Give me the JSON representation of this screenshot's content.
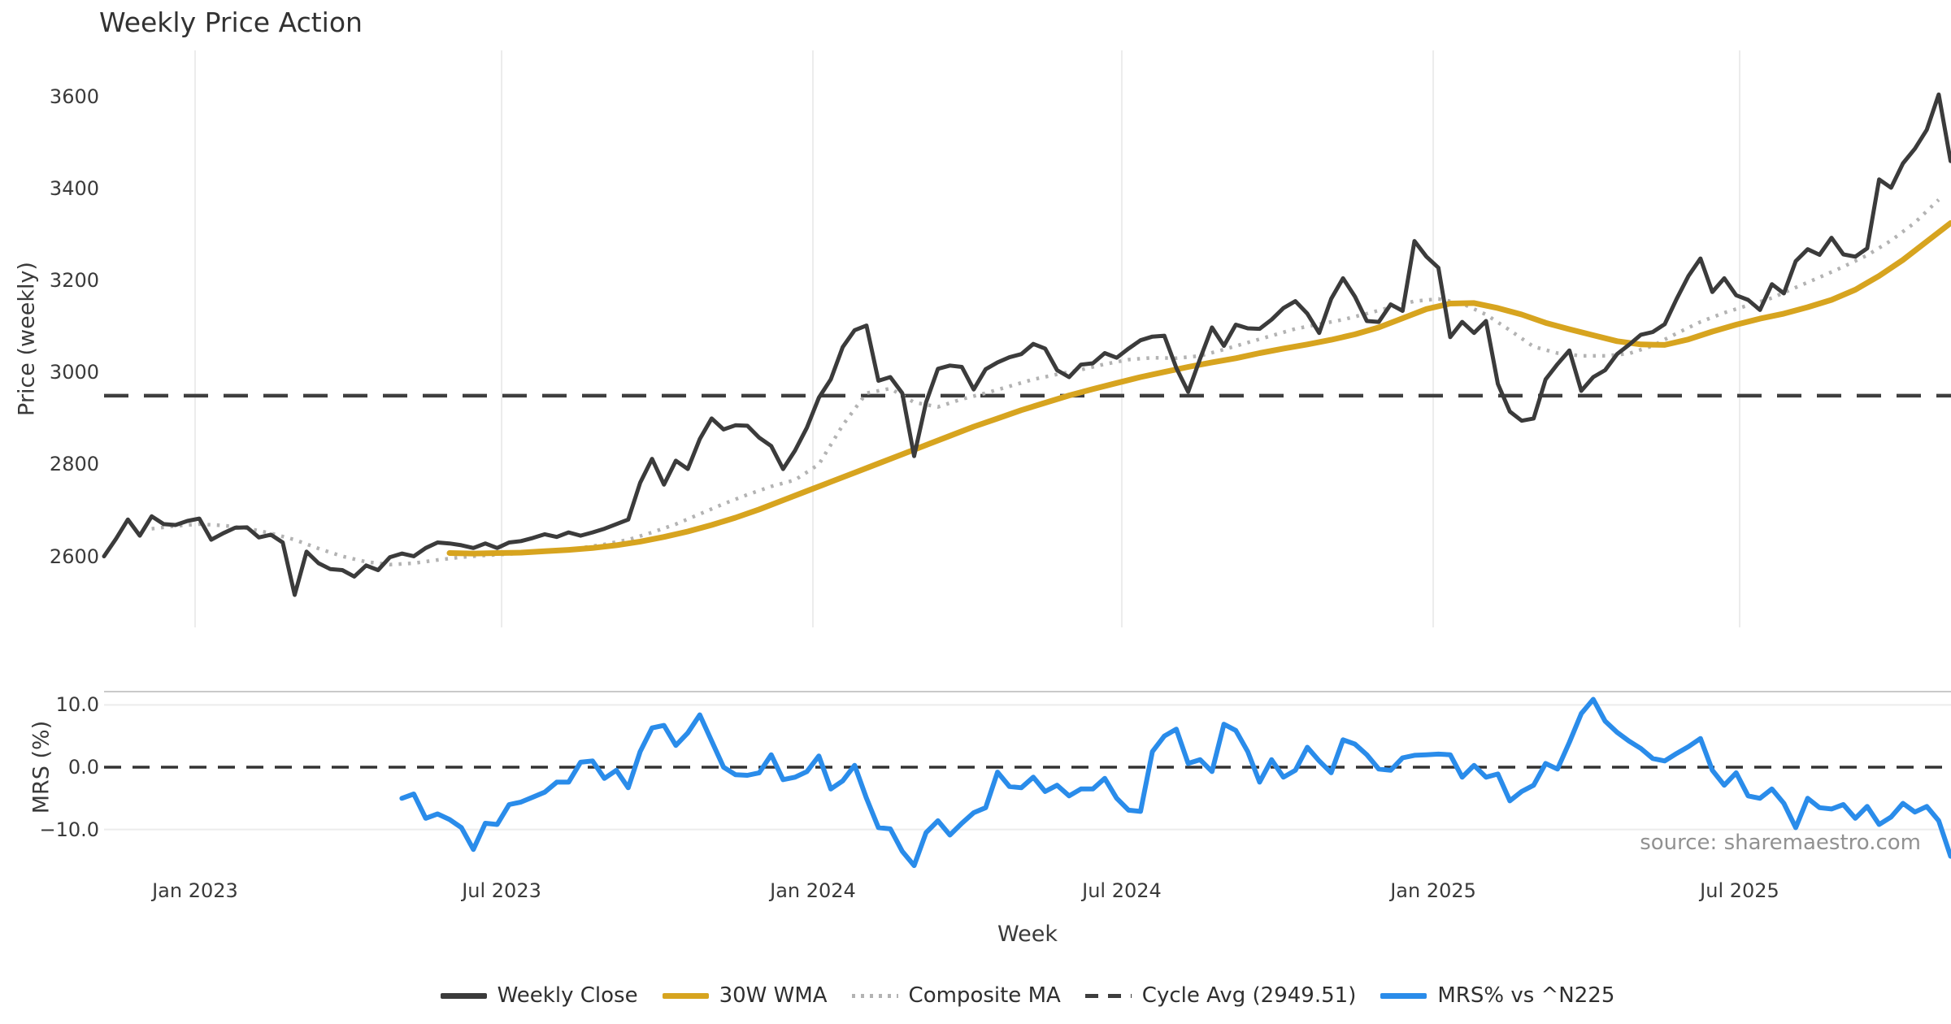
{
  "title": "Weekly Price Action",
  "x_label": "Week",
  "source": "source: sharemaestro.com",
  "colors": {
    "close": "#3b3b3b",
    "wma": "#d7a41f",
    "composite": "#b3b3b3",
    "cycle_avg": "#3e3e3e",
    "mrs": "#2a8cea",
    "grid": "#ececec",
    "spine": "#c9c9c9",
    "zero_line": "#333333",
    "text": "#3a3a3a",
    "muted": "#919191"
  },
  "price_panel": {
    "y_label": "Price (weekly)",
    "y_ticks": [
      3600,
      3400,
      3200,
      3000,
      2800,
      2600
    ]
  },
  "mrs_panel": {
    "y_label": "MRS (%)",
    "y_ticks": [
      {
        "label": "10.0",
        "value": 10
      },
      {
        "label": "0.0",
        "value": 0
      },
      {
        "label": "−10.0",
        "value": -10
      }
    ]
  },
  "x_ticks": [
    {
      "label": "Jan 2023",
      "week": 7.64
    },
    {
      "label": "Jul 2023",
      "week": 33.37
    },
    {
      "label": "Jan 2024",
      "week": 59.5
    },
    {
      "label": "Jul 2024",
      "week": 85.43
    },
    {
      "label": "Jan 2025",
      "week": 111.57
    },
    {
      "label": "Jul 2025",
      "week": 137.29
    }
  ],
  "legend": [
    {
      "label": "Weekly Close",
      "style": "solid",
      "color": "#3b3b3b"
    },
    {
      "label": "30W WMA",
      "style": "solid",
      "color": "#d7a41f"
    },
    {
      "label": "Composite MA",
      "style": "dotted",
      "color": "#b3b3b3"
    },
    {
      "label": "Cycle Avg (2949.51)",
      "style": "dashed",
      "color": "#3e3e3e"
    },
    {
      "label": "MRS% vs ^N225",
      "style": "solid",
      "color": "#2a8cea"
    }
  ],
  "chart_data": {
    "type": "line",
    "x_unit": "weeks (weekly samples, ~Nov 2022 to Nov 2025)",
    "panels": [
      {
        "name": "price",
        "ylabel": "Price (weekly)",
        "ylim": [
          2480,
          3660
        ],
        "grid": "vertical-only",
        "cycle_avg_value": 2949.51,
        "series": [
          {
            "name": "Weekly Close",
            "start_week": 0,
            "step": 1,
            "values": [
              2600,
              2638,
              2680,
              2645,
              2687,
              2670,
              2668,
              2677,
              2682,
              2636,
              2650,
              2662,
              2663,
              2641,
              2647,
              2630,
              2516,
              2610,
              2585,
              2572,
              2570,
              2556,
              2580,
              2570,
              2598,
              2606,
              2600,
              2618,
              2630,
              2628,
              2624,
              2618,
              2628,
              2618,
              2630,
              2633,
              2640,
              2648,
              2642,
              2652,
              2645,
              2652,
              2660,
              2670,
              2680,
              2760,
              2812,
              2756,
              2808,
              2790,
              2855,
              2900,
              2876,
              2885,
              2884,
              2858,
              2840,
              2790,
              2830,
              2880,
              2945,
              2985,
              3055,
              3092,
              3102,
              2982,
              2990,
              2955,
              2818,
              2935,
              3008,
              3015,
              3012,
              2963,
              3007,
              3022,
              3033,
              3040,
              3062,
              3052,
              3005,
              2990,
              3017,
              3020,
              3042,
              3032,
              3052,
              3070,
              3078,
              3080,
              3010,
              2958,
              3030,
              3098,
              3058,
              3104,
              3096,
              3095,
              3115,
              3140,
              3155,
              3128,
              3086,
              3160,
              3205,
              3165,
              3112,
              3110,
              3148,
              3134,
              3286,
              3252,
              3228,
              3077,
              3110,
              3086,
              3112,
              2975,
              2915,
              2895,
              2900,
              2985,
              3018,
              3048,
              2960,
              2990,
              3005,
              3040,
              3060,
              3082,
              3088,
              3105,
              3160,
              3210,
              3248,
              3175,
              3205,
              3168,
              3158,
              3136,
              3192,
              3172,
              3242,
              3268,
              3256,
              3293,
              3257,
              3252,
              3270,
              3420,
              3402,
              3455,
              3487,
              3528,
              3605,
              3460
            ]
          },
          {
            "name": "30W WMA",
            "start_week": 29,
            "step": 2,
            "values": [
              2607,
              2606,
              2607,
              2608,
              2611,
              2614,
              2618,
              2624,
              2632,
              2642,
              2654,
              2668,
              2684,
              2702,
              2722,
              2742,
              2762,
              2782,
              2802,
              2822,
              2842,
              2862,
              2882,
              2900,
              2918,
              2934,
              2950,
              2964,
              2977,
              2990,
              3001,
              3012,
              3022,
              3031,
              3042,
              3052,
              3061,
              3071,
              3083,
              3098,
              3118,
              3138,
              3150,
              3151,
              3140,
              3126,
              3108,
              3094,
              3081,
              3068,
              3061,
              3060,
              3072,
              3089,
              3104,
              3117,
              3128,
              3142,
              3158,
              3180,
              3210,
              3245,
              3285,
              3325
            ]
          },
          {
            "name": "Composite MA",
            "start_week": 4,
            "step": 2,
            "values": [
              2660,
              2666,
              2670,
              2667,
              2661,
              2650,
              2636,
              2617,
              2600,
              2588,
              2582,
              2585,
              2592,
              2598,
              2602,
              2605,
              2608,
              2612,
              2618,
              2626,
              2636,
              2652,
              2670,
              2692,
              2714,
              2734,
              2752,
              2766,
              2800,
              2885,
              2955,
              2965,
              2935,
              2925,
              2942,
              2955,
              2970,
              2985,
              2996,
              3006,
              3018,
              3028,
              3032,
              3031,
              3036,
              3050,
              3065,
              3080,
              3095,
              3105,
              3115,
              3128,
              3142,
              3155,
              3160,
              3150,
              3126,
              3092,
              3056,
              3042,
              3036,
              3036,
              3041,
              3058,
              3085,
              3110,
              3130,
              3146,
              3162,
              3185,
              3207,
              3230,
              3255,
              3287,
              3326,
              3376
            ]
          }
        ]
      },
      {
        "name": "mrs",
        "ylabel": "MRS (%)",
        "ylim": [
          -17.5,
          12.5
        ],
        "grid": "horizontal-at-ticks",
        "zero_line": 0,
        "series": [
          {
            "name": "MRS% vs ^N225",
            "start_week": 25,
            "step": 1,
            "values": [
              -5.0,
              -4.3,
              -8.2,
              -7.5,
              -8.4,
              -9.7,
              -13.2,
              -9.0,
              -9.2,
              -6.0,
              -5.6,
              -4.8,
              -4.0,
              -2.4,
              -2.4,
              0.8,
              1.0,
              -1.8,
              -0.5,
              -3.3,
              2.5,
              6.3,
              6.7,
              3.5,
              5.5,
              8.4,
              4.2,
              0.0,
              -1.2,
              -1.3,
              -0.9,
              2.0,
              -2.0,
              -1.6,
              -0.7,
              1.8,
              -3.5,
              -2.2,
              0.3,
              -5.0,
              -9.7,
              -9.9,
              -13.5,
              -15.8,
              -10.5,
              -8.6,
              -10.9,
              -9.0,
              -7.3,
              -6.5,
              -0.8,
              -3.1,
              -3.3,
              -1.6,
              -3.9,
              -2.9,
              -4.6,
              -3.5,
              -3.5,
              -1.8,
              -5.0,
              -6.9,
              -7.1,
              2.5,
              5.0,
              6.1,
              0.6,
              1.2,
              -0.7,
              6.9,
              5.9,
              2.5,
              -2.4,
              1.2,
              -1.6,
              -0.5,
              3.2,
              1.0,
              -0.9,
              4.4,
              3.7,
              2.0,
              -0.3,
              -0.5,
              1.5,
              1.9,
              2.0,
              2.1,
              2.0,
              -1.6,
              0.3,
              -1.6,
              -1.1,
              -5.4,
              -3.9,
              -2.9,
              0.6,
              -0.3,
              4.0,
              8.6,
              10.9,
              7.4,
              5.6,
              4.2,
              3.0,
              1.4,
              1.0,
              2.2,
              3.3,
              4.6,
              -0.5,
              -2.9,
              -0.9,
              -4.6,
              -5.0,
              -3.5,
              -5.8,
              -9.7,
              -5.0,
              -6.5,
              -6.7,
              -6.0,
              -8.2,
              -6.3,
              -9.2,
              -8.0,
              -5.8,
              -7.2,
              -6.3,
              -8.6,
              -14.3
            ]
          }
        ]
      }
    ],
    "title": "Weekly Price Action",
    "xlabel": "Week",
    "legend_position": "bottom-center"
  }
}
